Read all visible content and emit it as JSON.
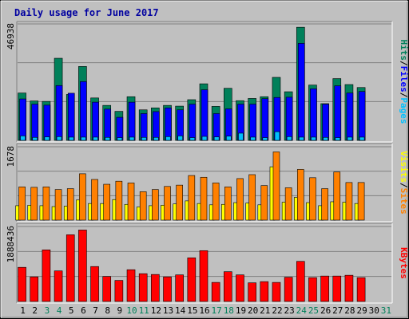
{
  "chart_data": [
    {
      "type": "bar",
      "panel": "hits-files-pages",
      "title": "Daily usage for June 2017",
      "ylabel_max": "46938",
      "ymax": 46938,
      "categories": [
        "1",
        "2",
        "3",
        "4",
        "5",
        "6",
        "7",
        "8",
        "9",
        "10",
        "11",
        "12",
        "13",
        "14",
        "15",
        "16",
        "17",
        "18",
        "19",
        "20",
        "21",
        "22",
        "23",
        "24",
        "25",
        "26",
        "27",
        "28",
        "29",
        "30",
        "31"
      ],
      "series": [
        {
          "name": "Hits",
          "color": "#00805a",
          "values": [
            19100,
            15900,
            15700,
            33100,
            18500,
            29800,
            17100,
            14100,
            11700,
            17600,
            12300,
            13100,
            14100,
            13800,
            16400,
            22800,
            13700,
            21000,
            16000,
            16900,
            17600,
            25400,
            19600,
            45600,
            22300,
            14800,
            24900,
            22500,
            21300,
            0,
            0
          ]
        },
        {
          "name": "Files",
          "color": "#0000ff",
          "values": [
            16700,
            14600,
            14200,
            22100,
            19000,
            23700,
            15400,
            12600,
            9300,
            15400,
            10800,
            11600,
            13100,
            12300,
            14600,
            20400,
            10800,
            12700,
            14600,
            14600,
            16800,
            17300,
            17400,
            39100,
            20800,
            14600,
            22000,
            19100,
            19700,
            0,
            0
          ]
        },
        {
          "name": "Pages",
          "color": "#00c0ff",
          "values": [
            1800,
            1200,
            1400,
            1500,
            1300,
            1300,
            1300,
            1200,
            1100,
            1300,
            1200,
            1200,
            1500,
            1800,
            1100,
            1600,
            1400,
            1700,
            2900,
            1300,
            1100,
            3500,
            1500,
            1300,
            1300,
            1200,
            1100,
            1300,
            1300,
            0,
            0
          ]
        }
      ],
      "legend": [
        "Pages",
        "/",
        "Files",
        "/",
        "Hits"
      ],
      "legend_position": "right"
    },
    {
      "type": "bar",
      "panel": "visits-sites",
      "ylabel_max": "1678",
      "ymax": 1678,
      "series": [
        {
          "name": "Visits",
          "color": "#ffff00",
          "values": [
            330,
            340,
            330,
            310,
            320,
            460,
            380,
            380,
            470,
            360,
            300,
            330,
            340,
            370,
            440,
            380,
            350,
            360,
            400,
            390,
            350,
            1220,
            410,
            520,
            400,
            330,
            420,
            410,
            380,
            0,
            0
          ]
        },
        {
          "name": "Sites",
          "color": "#ff8000",
          "values": [
            760,
            750,
            760,
            700,
            720,
            1060,
            930,
            820,
            890,
            850,
            650,
            700,
            770,
            800,
            1020,
            980,
            850,
            760,
            950,
            1040,
            790,
            1560,
            740,
            1160,
            970,
            720,
            1100,
            860,
            860,
            0,
            0
          ]
        }
      ],
      "legend": [
        "Sites",
        "/",
        "Visits"
      ],
      "legend_position": "right"
    },
    {
      "type": "bar",
      "panel": "kbytes",
      "ylabel_max": "1888436",
      "ymax": 1888436,
      "series": [
        {
          "name": "KBytes",
          "color": "#ff0000",
          "values": [
            860000,
            620000,
            1300000,
            770000,
            1680000,
            1800000,
            880000,
            630000,
            530000,
            800000,
            700000,
            680000,
            620000,
            670000,
            1100000,
            1280000,
            480000,
            750000,
            670000,
            470000,
            500000,
            480000,
            610000,
            1010000,
            600000,
            640000,
            640000,
            660000,
            600000,
            0,
            0
          ]
        }
      ],
      "legend": [
        "KBytes"
      ],
      "legend_position": "right"
    }
  ],
  "colors": {
    "background": "#c0c0c0",
    "plot_bg": "#c0c0c0",
    "title": "#0000a0",
    "weekday": "#000000",
    "weekend": "#00805a",
    "slash": "#000000"
  },
  "weekend_days": [
    "3",
    "4",
    "10",
    "11",
    "17",
    "18",
    "24",
    "25",
    "31"
  ]
}
